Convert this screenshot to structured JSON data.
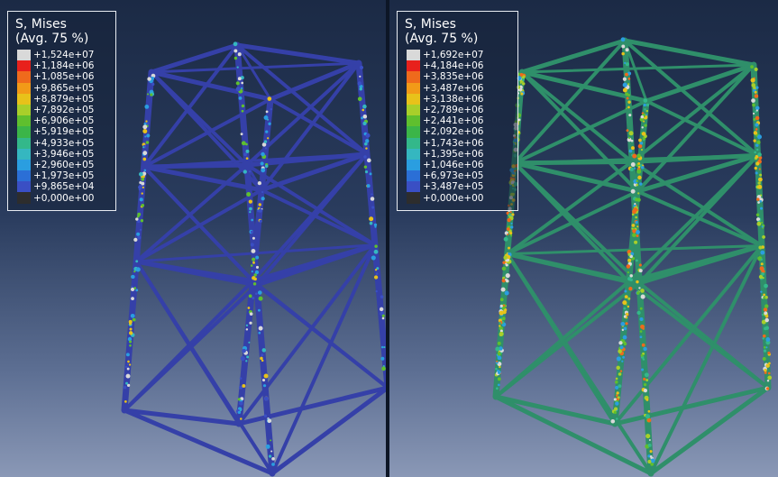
{
  "panels": [
    {
      "legend": {
        "title": "S, Mises",
        "subtitle": "(Avg. 75 %)",
        "values": [
          "+1,524e+07",
          "+1,184e+06",
          "+1,085e+06",
          "+9,865e+05",
          "+8,879e+05",
          "+7,892e+05",
          "+6,906e+05",
          "+5,919e+05",
          "+4,933e+05",
          "+3,946e+05",
          "+2,960e+05",
          "+1,973e+05",
          "+9,865e+04",
          "+0,000e+00"
        ],
        "colors": [
          "#d9d9d9",
          "#e8211c",
          "#ef6a1c",
          "#f29a18",
          "#e8c21a",
          "#a8cf2a",
          "#5fbf2e",
          "#3bb548",
          "#33b88a",
          "#35b7c0",
          "#2a9ee0",
          "#2b6fd6",
          "#3a4fc4",
          "#2d2d2d"
        ]
      },
      "model_color": "#3540a8"
    },
    {
      "legend": {
        "title": "S, Mises",
        "subtitle": "(Avg. 75 %)",
        "values": [
          "+1,692e+07",
          "+4,184e+06",
          "+3,835e+06",
          "+3,487e+06",
          "+3,138e+06",
          "+2,789e+06",
          "+2,441e+06",
          "+2,092e+06",
          "+1,743e+06",
          "+1,395e+06",
          "+1,046e+06",
          "+6,973e+05",
          "+3,487e+05",
          "+0,000e+00"
        ],
        "colors": [
          "#d9d9d9",
          "#e8211c",
          "#ef6a1c",
          "#f29a18",
          "#e8c21a",
          "#a8cf2a",
          "#5fbf2e",
          "#3bb548",
          "#33b88a",
          "#35b7c0",
          "#2a9ee0",
          "#2b6fd6",
          "#3a4fc4",
          "#2d2d2d"
        ]
      },
      "model_color": "#2f8f6a"
    }
  ]
}
